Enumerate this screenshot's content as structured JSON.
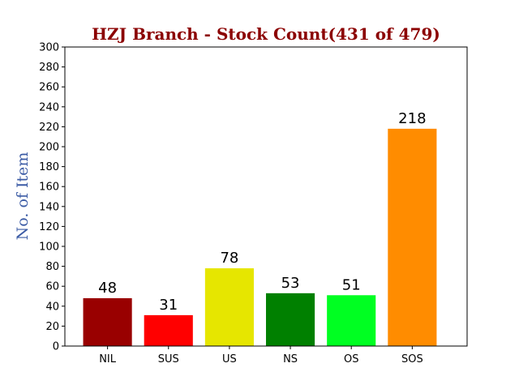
{
  "chart_data": {
    "type": "bar",
    "title": "HZJ Branch - Stock Count(431 of 479)",
    "xlabel": "",
    "ylabel": "No. of Item",
    "categories": [
      "NIL",
      "SUS",
      "US",
      "NS",
      "OS",
      "SOS"
    ],
    "values": [
      48,
      31,
      78,
      53,
      51,
      218
    ],
    "bar_colors": [
      "#990000",
      "#ff0000",
      "#e6e600",
      "#008000",
      "#00ff22",
      "#ff8c00"
    ],
    "ylim": [
      0,
      300
    ],
    "yticks": [
      0,
      20,
      40,
      60,
      80,
      100,
      120,
      140,
      160,
      180,
      200,
      220,
      240,
      260,
      280,
      300
    ],
    "grid": false,
    "title_color": "#8b0000",
    "ylabel_color": "#3b5ba5"
  }
}
